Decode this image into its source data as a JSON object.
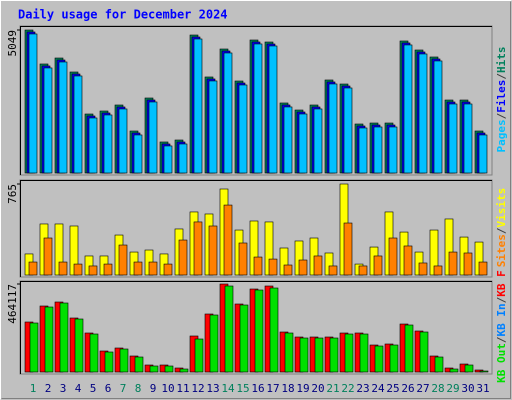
{
  "chart_data": {
    "type": "bar",
    "title": "Daily usage for December 2024",
    "categories": [
      "1",
      "2",
      "3",
      "4",
      "5",
      "6",
      "7",
      "8",
      "9",
      "10",
      "11",
      "12",
      "13",
      "14",
      "15",
      "16",
      "17",
      "18",
      "19",
      "20",
      "21",
      "22",
      "23",
      "24",
      "25",
      "26",
      "27",
      "28",
      "29",
      "30",
      "31"
    ],
    "category_colors": [
      "#00805c",
      "#000080",
      "#000080",
      "#000080",
      "#000080",
      "#000080",
      "#00805c",
      "#00805c",
      "#000080",
      "#000080",
      "#000080",
      "#000080",
      "#000080",
      "#00805c",
      "#00805c",
      "#000080",
      "#000080",
      "#000080",
      "#000080",
      "#000080",
      "#00805c",
      "#00805c",
      "#000080",
      "#000080",
      "#000080",
      "#000080",
      "#000080",
      "#00805c",
      "#00805c",
      "#000080",
      "#000080"
    ],
    "legend_separator": "/",
    "panels": [
      {
        "ylim": [
          0,
          5049
        ],
        "yticks": [
          5049
        ],
        "series": [
          {
            "name": "Hits",
            "color": "#00805c",
            "values": [
              5049,
              3849,
              4060,
              3566,
              2083,
              2189,
              2401,
              1483,
              2648,
              1095,
              1165,
              4872,
              3390,
              4378,
              3248,
              4696,
              4625,
              2472,
              2224,
              2401,
              3284,
              3142,
              1730,
              1765,
              1765,
              4661,
              4343,
              4096,
              2577,
              2577,
              1483
            ]
          },
          {
            "name": "Files",
            "color": "#0000ff",
            "values": [
              4979,
              3779,
              3990,
              3496,
              2013,
              2119,
              2331,
              1413,
              2578,
              1025,
              1095,
              4802,
              3320,
              4308,
              3178,
              4626,
              4555,
              2402,
              2154,
              2331,
              3214,
              3072,
              1660,
              1695,
              1695,
              4591,
              4273,
              4026,
              2507,
              2507,
              1413
            ]
          },
          {
            "name": "Pages",
            "color": "#00c0ff",
            "values": [
              4909,
              3709,
              3920,
              3426,
              1943,
              2049,
              2261,
              1343,
              2508,
              955,
              1025,
              4732,
              3250,
              4238,
              3108,
              4556,
              4485,
              2332,
              2084,
              2261,
              3144,
              3002,
              1590,
              1625,
              1625,
              4521,
              4203,
              3956,
              2437,
              2437,
              1343
            ]
          }
        ]
      },
      {
        "ylim": [
          0,
          765
        ],
        "yticks": [
          765
        ],
        "series": [
          {
            "name": "Visits",
            "color": "#ffff00",
            "values": [
              177,
              429,
              429,
              412,
              160,
              160,
              336,
              193,
              210,
              177,
              387,
              530,
              513,
              723,
              378,
              454,
              446,
              227,
              286,
              311,
              185,
              765,
              92,
              235,
              530,
              361,
              193,
              378,
              471,
              319,
              277
            ]
          },
          {
            "name": "Sites",
            "color": "#ff8000",
            "values": [
              109,
              311,
              109,
              92,
              76,
              92,
              252,
              109,
              109,
              92,
              294,
              446,
              412,
              588,
              269,
              151,
              134,
              84,
              126,
              160,
              76,
              437,
              76,
              160,
              311,
              244,
              101,
              76,
              193,
              185,
              109
            ]
          }
        ]
      },
      {
        "ylim": [
          0,
          464117
        ],
        "yticks": [
          464117
        ],
        "series": [
          {
            "name": "KB F",
            "color": "#ff0000",
            "values": [
              263700,
              348084,
              369180,
              284796,
              205686,
              110754,
              126576,
              84384,
              36918,
              36918,
              21096,
              189864,
              305892,
              464117,
              358632,
              437742,
              453564,
              210960,
              184590,
              184590,
              184590,
              205686,
              205686,
              142398,
              147672,
              253152,
              216234,
              84384,
              21096,
              42192,
              10548
            ]
          },
          {
            "name": "KB In",
            "color": "#0080ff",
            "values": [
              0,
              0,
              0,
              0,
              0,
              0,
              0,
              0,
              0,
              0,
              0,
              0,
              0,
              0,
              0,
              0,
              0,
              0,
              0,
              0,
              0,
              0,
              0,
              0,
              0,
              0,
              0,
              0,
              0,
              0,
              0
            ]
          },
          {
            "name": "KB Out",
            "color": "#00e000",
            "values": [
              258426,
              342810,
              363906,
              279522,
              200412,
              105480,
              121302,
              79110,
              31644,
              31644,
              15822,
              174042,
              300618,
              453569,
              353358,
              432468,
              443016,
              205686,
              179316,
              179316,
              179316,
              200412,
              200412,
              137124,
              142398,
              247878,
              210960,
              79110,
              15822,
              36918,
              5274
            ]
          }
        ]
      }
    ]
  }
}
